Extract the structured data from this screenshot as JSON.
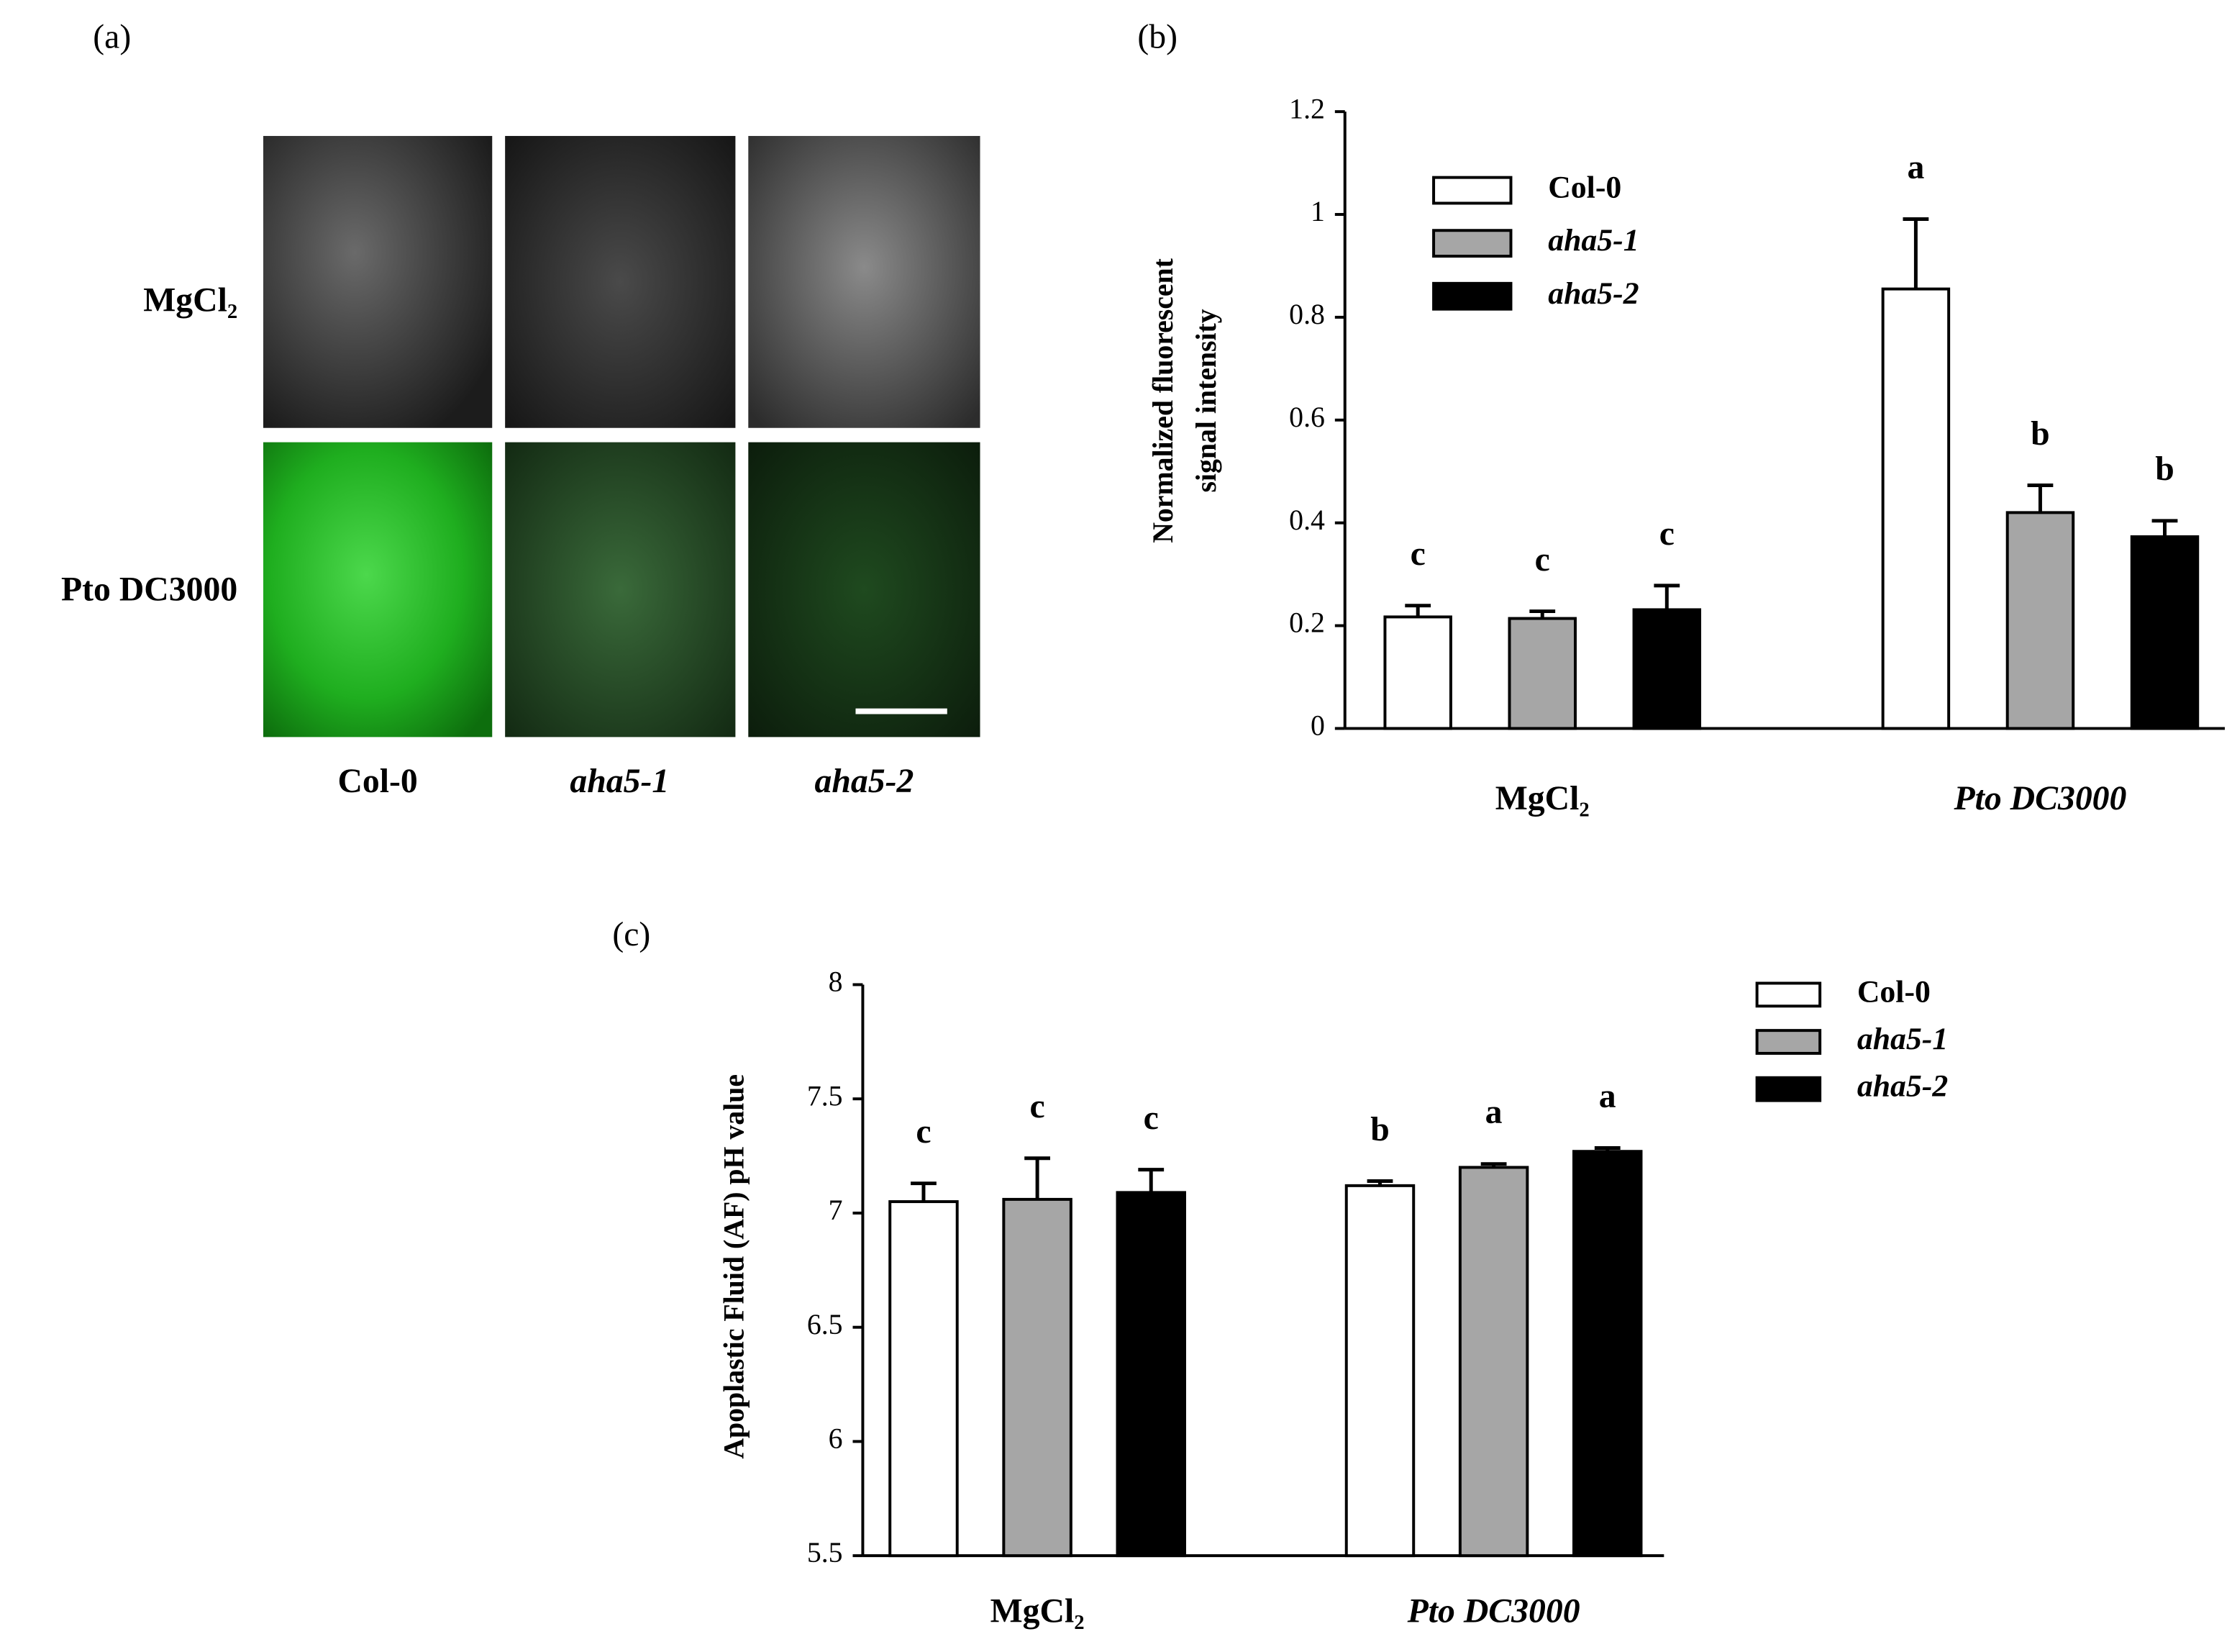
{
  "panel_a": {
    "label": "(a)",
    "rows": [
      "MgCl₂",
      "Pto DC3000"
    ],
    "columns": [
      "Col-0",
      "aha5-1",
      "aha5-2"
    ]
  },
  "chart_data": [
    {
      "type": "bar",
      "panel_label": "(b)",
      "ylabel": [
        "Normalized fluorescent",
        "signal intensity"
      ],
      "categories": [
        "MgCl₂",
        "Pto DC3000"
      ],
      "series": [
        {
          "name": "Col-0",
          "color": "#ffffff",
          "values": [
            0.217,
            0.855
          ],
          "errors": [
            0.022,
            0.136
          ],
          "letters": [
            "c",
            "a"
          ]
        },
        {
          "name": "aha5-1",
          "color": "#a6a6a6",
          "values": [
            0.214,
            0.42
          ],
          "errors": [
            0.014,
            0.053
          ],
          "letters": [
            "c",
            "b"
          ]
        },
        {
          "name": "aha5-2",
          "color": "#000000",
          "values": [
            0.231,
            0.373
          ],
          "errors": [
            0.047,
            0.031
          ],
          "letters": [
            "c",
            "b"
          ]
        }
      ],
      "ylim": [
        0,
        1.2
      ],
      "yticks": [
        0,
        0.2,
        0.4,
        0.6,
        0.8,
        1,
        1.2
      ],
      "legend": "top-left"
    },
    {
      "type": "bar",
      "panel_label": "(c)",
      "ylabel": [
        "Apoplastic Fluid (AF) pH value"
      ],
      "categories": [
        "MgCl₂",
        "Pto DC3000"
      ],
      "series": [
        {
          "name": "Col-0",
          "color": "#ffffff",
          "values": [
            7.05,
            7.12
          ],
          "errors": [
            0.08,
            0.02
          ],
          "letters": [
            "c",
            "b"
          ]
        },
        {
          "name": "aha5-1",
          "color": "#a6a6a6",
          "values": [
            7.06,
            7.2
          ],
          "errors": [
            0.18,
            0.015
          ],
          "letters": [
            "c",
            "a"
          ]
        },
        {
          "name": "aha5-2",
          "color": "#000000",
          "values": [
            7.09,
            7.27
          ],
          "errors": [
            0.1,
            0.015
          ],
          "letters": [
            "c",
            "a"
          ]
        }
      ],
      "ylim": [
        5.5,
        8
      ],
      "yticks": [
        5.5,
        6,
        6.5,
        7,
        7.5,
        8
      ],
      "legend": "top-right"
    }
  ]
}
